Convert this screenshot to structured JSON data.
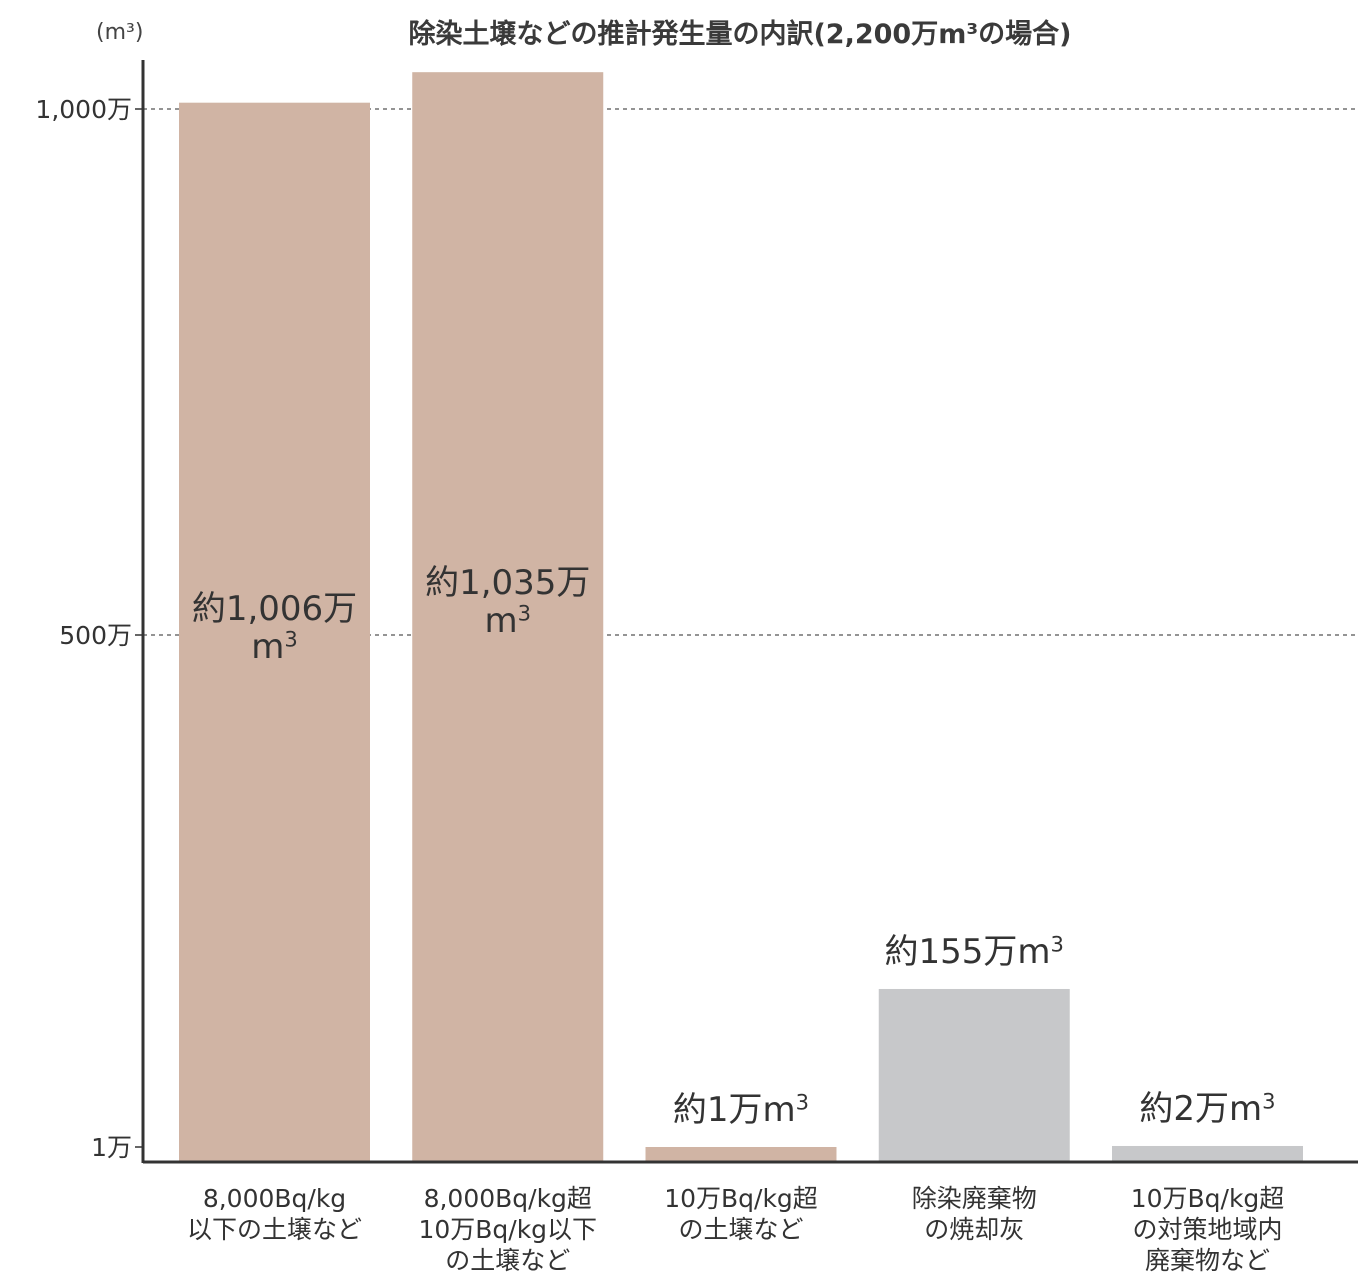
{
  "chart_data": {
    "type": "bar",
    "title": "除染土壌などの推計発生量の内訳(2,200万m³の場合)",
    "unit_label": "(m³)",
    "ylabel": "",
    "xlabel": "",
    "yticks": [
      {
        "label": "1,000万",
        "value": 10000000
      },
      {
        "label": "500万",
        "value": 5000000
      },
      {
        "label": "1万",
        "value": 10000
      }
    ],
    "ylim": [
      0,
      10000000
    ],
    "grid": "dashed at 500万 and 1,000万",
    "categories": [
      [
        "8,000Bq/kg",
        "以下の土壌など"
      ],
      [
        "8,000Bq/kg超",
        "10万Bq/kg以下",
        "の土壌など"
      ],
      [
        "10万Bq/kg超",
        "の土壌など"
      ],
      [
        "除染廃棄物",
        "の焼却灰"
      ],
      [
        "10万Bq/kg超",
        "の対策地域内",
        "廃棄物など"
      ]
    ],
    "values": [
      10060000,
      10350000,
      10000,
      1550000,
      20000
    ],
    "data_labels": [
      [
        "約1,006万",
        "m³"
      ],
      [
        "約1,035万",
        "m³"
      ],
      [
        "約1万m³"
      ],
      [
        "約155万m³"
      ],
      [
        "約2万m³"
      ]
    ],
    "label_position": [
      "inside",
      "inside",
      "above",
      "above",
      "above"
    ],
    "colors": [
      "#d0b4a4",
      "#d0b4a4",
      "#d0b4a4",
      "#c7c8ca",
      "#c7c8ca"
    ],
    "axis_color": "#333333",
    "grid_color": "#555555"
  }
}
